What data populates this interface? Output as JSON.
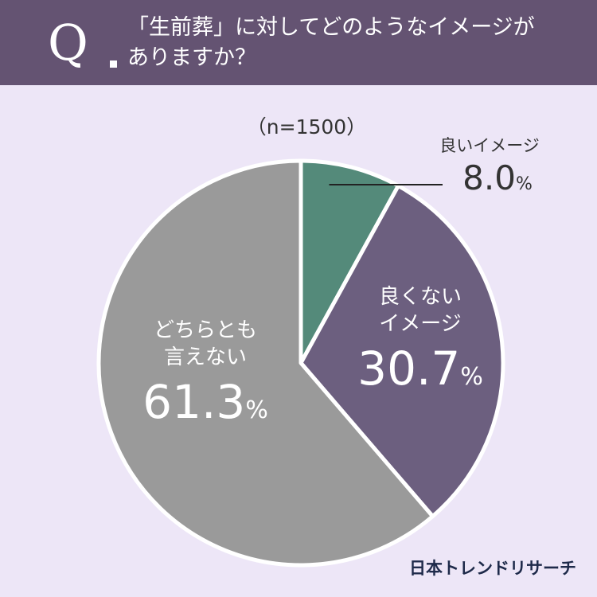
{
  "question": {
    "mark": "Q",
    "line1": "「生前葬」に対してどのようなイメージが",
    "line2": "ありますか？"
  },
  "chart_data": {
    "type": "pie",
    "n_label": "（n=1500）",
    "slices": [
      {
        "label": "良いイメージ",
        "value": 8.0,
        "value_label": "8.0",
        "color": "#548a7a"
      },
      {
        "label": "良くないイメージ",
        "value": 30.7,
        "value_label": "30.7",
        "color": "#6c5f7f"
      },
      {
        "label": "どちらとも言えない",
        "value": 61.3,
        "value_label": "61.3",
        "color": "#9a9a9a"
      }
    ],
    "unit": "%"
  },
  "labels": {
    "bad_line1": "良くない",
    "bad_line2": "イメージ",
    "neutral_line1": "どちらとも",
    "neutral_line2": "言えない"
  },
  "brand": "日本トレンドリサーチ"
}
